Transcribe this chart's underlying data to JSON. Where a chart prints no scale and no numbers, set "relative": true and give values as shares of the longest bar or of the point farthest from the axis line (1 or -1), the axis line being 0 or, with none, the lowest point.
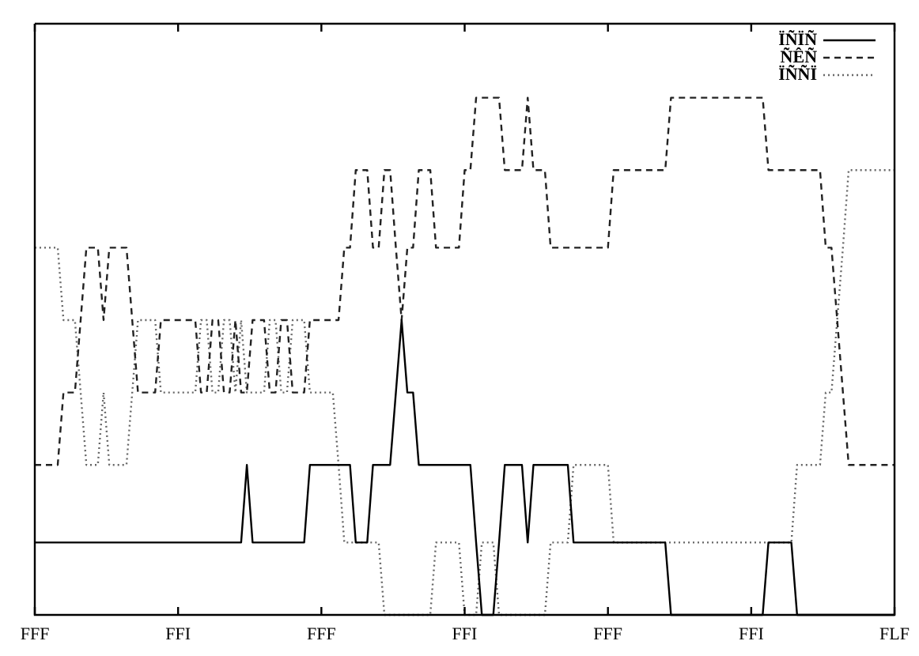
{
  "chart_data": {
    "type": "line",
    "relative": true,
    "marker": "none",
    "legend": "top right",
    "categories": [
      "FFF",
      null,
      null,
      null,
      null,
      null,
      null,
      null,
      null,
      null,
      null,
      null,
      null,
      null,
      null,
      null,
      null,
      null,
      null,
      null,
      null,
      null,
      null,
      null,
      null,
      "FFI",
      null,
      null,
      null,
      null,
      null,
      null,
      null,
      null,
      null,
      null,
      null,
      null,
      null,
      null,
      null,
      null,
      null,
      null,
      null,
      null,
      null,
      null,
      null,
      null,
      "FFF",
      null,
      null,
      null,
      null,
      null,
      null,
      null,
      null,
      null,
      null,
      null,
      null,
      null,
      null,
      null,
      null,
      null,
      null,
      null,
      null,
      null,
      null,
      null,
      null,
      "FFI",
      null,
      null,
      null,
      null,
      null,
      null,
      null,
      null,
      null,
      null,
      null,
      null,
      null,
      null,
      null,
      null,
      null,
      null,
      null,
      null,
      null,
      null,
      null,
      null,
      "FFF",
      null,
      null,
      null,
      null,
      null,
      null,
      null,
      null,
      null,
      null,
      null,
      null,
      null,
      null,
      null,
      null,
      null,
      null,
      null,
      null,
      null,
      null,
      null,
      null,
      "FFI",
      null,
      null,
      null,
      null,
      null,
      null,
      null,
      null,
      null,
      null,
      null,
      null,
      null,
      null,
      null,
      null,
      null,
      null,
      null,
      null,
      null,
      null,
      null,
      null,
      "FLF"
    ],
    "series": [
      {
        "name": "ÏÑÏÑ",
        "color": "#000000",
        "line_style": "solid",
        "values": [
          0.14,
          0.14,
          0.14,
          0.14,
          0.14,
          0.14,
          0.14,
          0.14,
          0.14,
          0.14,
          0.14,
          0.14,
          0.14,
          0.14,
          0.14,
          0.14,
          0.14,
          0.14,
          0.14,
          0.14,
          0.14,
          0.14,
          0.14,
          0.14,
          0.14,
          0.14,
          0.14,
          0.14,
          0.14,
          0.14,
          0.14,
          0.14,
          0.14,
          0.14,
          0.14,
          0.14,
          0.14,
          0.29,
          0.14,
          0.14,
          0.14,
          0.14,
          0.14,
          0.14,
          0.14,
          0.14,
          0.14,
          0.14,
          0.29,
          0.29,
          0.29,
          0.29,
          0.29,
          0.29,
          0.29,
          0.29,
          0.14,
          0.14,
          0.14,
          0.29,
          0.29,
          0.29,
          0.29,
          0.43,
          0.57,
          0.43,
          0.43,
          0.29,
          0.29,
          0.29,
          0.29,
          0.29,
          0.29,
          0.29,
          0.29,
          0.29,
          0.29,
          0.14,
          0,
          0,
          0,
          0.14,
          0.29,
          0.29,
          0.29,
          0.29,
          0.14,
          0.29,
          0.29,
          0.29,
          0.29,
          0.29,
          0.29,
          0.29,
          0.14,
          0.14,
          0.14,
          0.14,
          0.14,
          0.14,
          0.14,
          0.14,
          0.14,
          0.14,
          0.14,
          0.14,
          0.14,
          0.14,
          0.14,
          0.14,
          0.14,
          0,
          0,
          0,
          0,
          0,
          0,
          0,
          0,
          0,
          0,
          0,
          0,
          0,
          0,
          0,
          0,
          0,
          0.14,
          0.14,
          0.14,
          0.14,
          0.14,
          0,
          0,
          0,
          0,
          0,
          0,
          0,
          0,
          0,
          0,
          0,
          0,
          0,
          0,
          0,
          0,
          0,
          0
        ]
      },
      {
        "name": "ÑÊÑ",
        "color": "#222222",
        "line_style": "dashed",
        "values": [
          0.29,
          0.29,
          0.29,
          0.29,
          0.29,
          0.43,
          0.43,
          0.43,
          0.57,
          0.71,
          0.71,
          0.71,
          0.57,
          0.71,
          0.71,
          0.71,
          0.71,
          0.57,
          0.43,
          0.43,
          0.43,
          0.43,
          0.57,
          0.57,
          0.57,
          0.57,
          0.57,
          0.57,
          0.57,
          0.43,
          0.43,
          0.57,
          0.57,
          0.43,
          0.43,
          0.57,
          0.43,
          0.43,
          0.57,
          0.57,
          0.57,
          0.43,
          0.43,
          0.57,
          0.57,
          0.43,
          0.43,
          0.43,
          0.57,
          0.57,
          0.57,
          0.57,
          0.57,
          0.57,
          0.71,
          0.71,
          0.86,
          0.86,
          0.86,
          0.71,
          0.71,
          0.86,
          0.86,
          0.71,
          0.57,
          0.71,
          0.71,
          0.86,
          0.86,
          0.86,
          0.71,
          0.71,
          0.71,
          0.71,
          0.71,
          0.86,
          0.86,
          1,
          1,
          1,
          1,
          1,
          0.86,
          0.86,
          0.86,
          0.86,
          1,
          0.86,
          0.86,
          0.86,
          0.71,
          0.71,
          0.71,
          0.71,
          0.71,
          0.71,
          0.71,
          0.71,
          0.71,
          0.71,
          0.71,
          0.86,
          0.86,
          0.86,
          0.86,
          0.86,
          0.86,
          0.86,
          0.86,
          0.86,
          0.86,
          1,
          1,
          1,
          1,
          1,
          1,
          1,
          1,
          1,
          1,
          1,
          1,
          1,
          1,
          1,
          1,
          1,
          0.86,
          0.86,
          0.86,
          0.86,
          0.86,
          0.86,
          0.86,
          0.86,
          0.86,
          0.86,
          0.71,
          0.71,
          0.57,
          0.43,
          0.29,
          0.29,
          0.29,
          0.29,
          0.29,
          0.29,
          0.29,
          0.29,
          0.29
        ]
      },
      {
        "name": "ÏÑÑÏ",
        "color": "#666666",
        "line_style": "dotted",
        "values": [
          0.71,
          0.71,
          0.71,
          0.71,
          0.71,
          0.57,
          0.57,
          0.57,
          0.43,
          0.29,
          0.29,
          0.29,
          0.43,
          0.29,
          0.29,
          0.29,
          0.29,
          0.43,
          0.57,
          0.57,
          0.57,
          0.57,
          0.43,
          0.43,
          0.43,
          0.43,
          0.43,
          0.43,
          0.43,
          0.57,
          0.57,
          0.43,
          0.43,
          0.57,
          0.57,
          0.43,
          0.57,
          0.43,
          0.43,
          0.43,
          0.43,
          0.57,
          0.57,
          0.43,
          0.43,
          0.57,
          0.57,
          0.57,
          0.43,
          0.43,
          0.43,
          0.43,
          0.43,
          0.29,
          0.14,
          0.14,
          0.14,
          0.14,
          0.14,
          0.14,
          0.14,
          0,
          0,
          0,
          0,
          0,
          0,
          0,
          0,
          0,
          0.14,
          0.14,
          0.14,
          0.14,
          0.14,
          0,
          0,
          0,
          0.14,
          0.14,
          0.14,
          0,
          0,
          0,
          0,
          0,
          0,
          0,
          0,
          0,
          0.14,
          0.14,
          0.14,
          0.14,
          0.29,
          0.29,
          0.29,
          0.29,
          0.29,
          0.29,
          0.29,
          0.14,
          0.14,
          0.14,
          0.14,
          0.14,
          0.14,
          0.14,
          0.14,
          0.14,
          0.14,
          0.14,
          0.14,
          0.14,
          0.14,
          0.14,
          0.14,
          0.14,
          0.14,
          0.14,
          0.14,
          0.14,
          0.14,
          0.14,
          0.14,
          0.14,
          0.14,
          0.14,
          0.14,
          0.14,
          0.14,
          0.14,
          0.14,
          0.29,
          0.29,
          0.29,
          0.29,
          0.29,
          0.43,
          0.43,
          0.57,
          0.71,
          0.86,
          0.86,
          0.86,
          0.86,
          0.86,
          0.86,
          0.86,
          0.86,
          0.86
        ]
      }
    ]
  }
}
